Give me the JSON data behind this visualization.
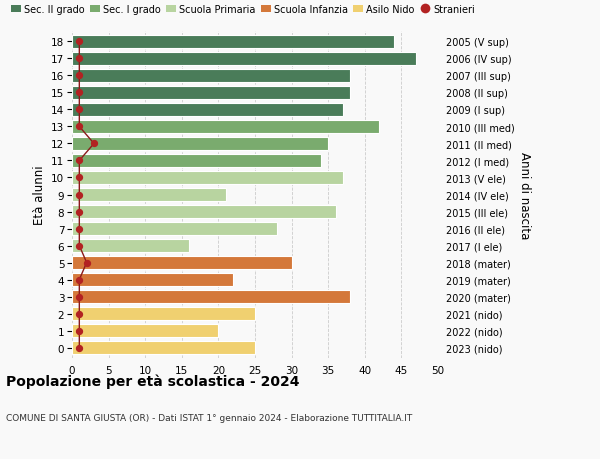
{
  "ages": [
    18,
    17,
    16,
    15,
    14,
    13,
    12,
    11,
    10,
    9,
    8,
    7,
    6,
    5,
    4,
    3,
    2,
    1,
    0
  ],
  "years_labels": [
    "2005 (V sup)",
    "2006 (IV sup)",
    "2007 (III sup)",
    "2008 (II sup)",
    "2009 (I sup)",
    "2010 (III med)",
    "2011 (II med)",
    "2012 (I med)",
    "2013 (V ele)",
    "2014 (IV ele)",
    "2015 (III ele)",
    "2016 (II ele)",
    "2017 (I ele)",
    "2018 (mater)",
    "2019 (mater)",
    "2020 (mater)",
    "2021 (nido)",
    "2022 (nido)",
    "2023 (nido)"
  ],
  "bar_values": [
    44,
    47,
    38,
    38,
    37,
    42,
    35,
    34,
    37,
    21,
    36,
    28,
    16,
    30,
    22,
    38,
    25,
    20,
    25
  ],
  "bar_colors": [
    "#4a7c59",
    "#4a7c59",
    "#4a7c59",
    "#4a7c59",
    "#4a7c59",
    "#7aab6e",
    "#7aab6e",
    "#7aab6e",
    "#b8d4a0",
    "#b8d4a0",
    "#b8d4a0",
    "#b8d4a0",
    "#b8d4a0",
    "#d4783a",
    "#d4783a",
    "#d4783a",
    "#f0d070",
    "#f0d070",
    "#f0d070"
  ],
  "stranieri_values": [
    1,
    1,
    1,
    1,
    1,
    1,
    3,
    1,
    1,
    1,
    1,
    1,
    1,
    2,
    1,
    1,
    1,
    1,
    1
  ],
  "legend_labels": [
    "Sec. II grado",
    "Sec. I grado",
    "Scuola Primaria",
    "Scuola Infanzia",
    "Asilo Nido",
    "Stranieri"
  ],
  "legend_colors": [
    "#4a7c59",
    "#7aab6e",
    "#b8d4a0",
    "#d4783a",
    "#f0d070",
    "#b22222"
  ],
  "ylabel_left": "Età alunni",
  "ylabel_right": "Anni di nascita",
  "title": "Popolazione per età scolastica - 2024",
  "subtitle": "COMUNE DI SANTA GIUSTA (OR) - Dati ISTAT 1° gennaio 2024 - Elaborazione TUTTITALIA.IT",
  "xlim": [
    0,
    50
  ],
  "xticks": [
    0,
    5,
    10,
    15,
    20,
    25,
    30,
    35,
    40,
    45,
    50
  ],
  "background_color": "#f9f9f9",
  "grid_color": "#cccccc"
}
